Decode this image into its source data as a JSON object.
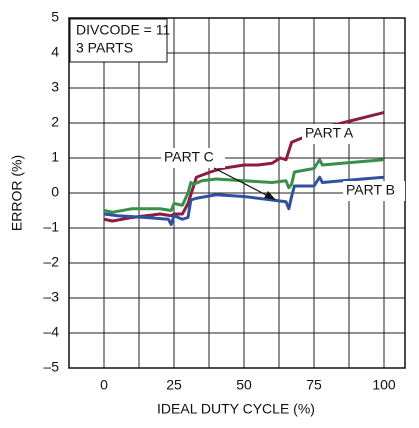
{
  "chart_data": {
    "type": "line",
    "xlabel": "IDEAL DUTY CYCLE (%)",
    "ylabel": "ERROR (%)",
    "annotations": [
      "DIVCODE = 11",
      "3 PARTS",
      "PART A",
      "PART C",
      "PART B"
    ],
    "xlim": [
      -12.5,
      107.5
    ],
    "ylim": [
      -5,
      5
    ],
    "xticks": [
      0,
      25,
      50,
      75,
      100
    ],
    "xgrid": [
      12.5,
      37.5,
      62.5,
      87.5
    ],
    "yticks": [
      {
        "value": -5,
        "label": "–5"
      },
      {
        "value": -4,
        "label": "–4"
      },
      {
        "value": -3,
        "label": "–3"
      },
      {
        "value": -2,
        "label": "–2"
      },
      {
        "value": -1,
        "label": "–1"
      },
      0,
      1,
      2,
      3,
      4,
      5
    ],
    "grid": true,
    "series": [
      {
        "name": "PART A",
        "color": "#8c1d40",
        "x": [
          0,
          3,
          10,
          20,
          24,
          25,
          28,
          30,
          32,
          33,
          38,
          42,
          50,
          55,
          60,
          63,
          65,
          67,
          70,
          75,
          76,
          78,
          80,
          90,
          100
        ],
        "values": [
          -0.75,
          -0.8,
          -0.7,
          -0.6,
          -0.65,
          -0.6,
          -0.6,
          -0.3,
          0.2,
          0.45,
          0.6,
          0.7,
          0.8,
          0.8,
          0.85,
          1.0,
          0.95,
          1.45,
          1.55,
          1.65,
          1.85,
          1.8,
          1.9,
          2.1,
          2.3
        ]
      },
      {
        "name": "PART C",
        "color": "#3a8f4a",
        "x": [
          0,
          3,
          10,
          20,
          24,
          25,
          28,
          30,
          31,
          32,
          35,
          40,
          50,
          60,
          65,
          66,
          67,
          68,
          75,
          77,
          78,
          85,
          100
        ],
        "values": [
          -0.5,
          -0.55,
          -0.45,
          -0.45,
          -0.5,
          -0.3,
          -0.35,
          0.0,
          0.3,
          0.25,
          0.35,
          0.4,
          0.35,
          0.3,
          0.35,
          0.15,
          0.25,
          0.6,
          0.7,
          0.95,
          0.8,
          0.85,
          0.95
        ]
      },
      {
        "name": "PART B",
        "color": "#3050a0",
        "x": [
          0,
          5,
          15,
          23,
          24,
          25,
          28,
          30,
          31,
          33,
          40,
          50,
          60,
          65,
          66,
          67,
          68,
          75,
          77,
          78,
          85,
          100
        ],
        "values": [
          -0.6,
          -0.65,
          -0.7,
          -0.75,
          -0.9,
          -0.65,
          -0.75,
          -0.7,
          -0.2,
          -0.15,
          -0.05,
          -0.1,
          -0.2,
          -0.25,
          -0.45,
          -0.1,
          0.2,
          0.2,
          0.45,
          0.3,
          0.35,
          0.45
        ]
      }
    ]
  }
}
